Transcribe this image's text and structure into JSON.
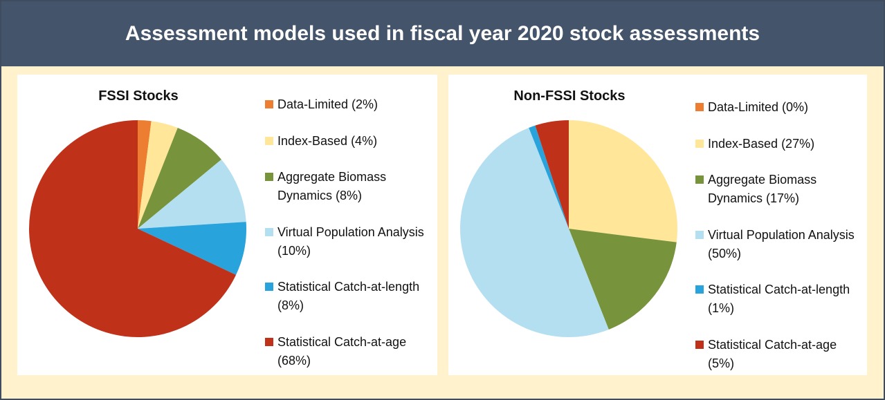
{
  "title": "Assessment models used in fiscal year 2020 stock assessments",
  "chart_data": [
    {
      "type": "pie",
      "title": "FSSI Stocks",
      "categories": [
        "Data-Limited (2%)",
        "Index-Based (4%)",
        "Aggregate Biomass Dynamics (8%)",
        "Virtual Population Analysis (10%)",
        "Statistical Catch-at-length (8%)",
        "Statistical Catch-at-age (68%)"
      ],
      "values": [
        2,
        4,
        8,
        10,
        8,
        68
      ],
      "colors": [
        "#ed7d31",
        "#ffe699",
        "#77933c",
        "#b4dff0",
        "#29a3db",
        "#c0311a"
      ]
    },
    {
      "type": "pie",
      "title": "Non-FSSI Stocks",
      "categories": [
        "Data-Limited (0%)",
        "Index-Based (27%)",
        "Aggregate Biomass Dynamics (17%)",
        "Virtual Population Analysis (50%)",
        "Statistical Catch-at-length (1%)",
        "Statistical Catch-at-age (5%)"
      ],
      "values": [
        0,
        27,
        17,
        50,
        1,
        5
      ],
      "colors": [
        "#ed7d31",
        "#ffe699",
        "#77933c",
        "#b4dff0",
        "#29a3db",
        "#c0311a"
      ]
    }
  ]
}
